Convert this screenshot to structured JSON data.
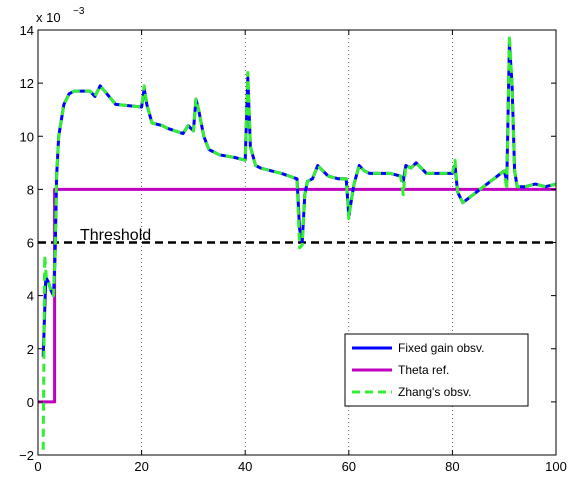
{
  "chart_data": {
    "type": "line",
    "title": "",
    "xlabel": "",
    "ylabel": "",
    "xlim": [
      0,
      100
    ],
    "ylim": [
      -2,
      14
    ],
    "y_scale_label": "x 10",
    "y_scale_exponent": "−3",
    "x_ticks": [
      "0",
      "20",
      "40",
      "60",
      "80",
      "100"
    ],
    "y_ticks": [
      "−2",
      "0",
      "2",
      "4",
      "6",
      "8",
      "10",
      "12",
      "14"
    ],
    "grid": "vertical dotted",
    "legend_position": "bottom-right",
    "annotation": "Threshold",
    "series": [
      {
        "name": "Fixed gain obsv.",
        "color": "#0000ff",
        "style": "solid",
        "x": [
          1,
          1.5,
          2,
          2.5,
          3,
          3.3,
          3.6,
          4,
          5,
          6,
          7,
          8,
          10,
          11,
          12,
          15,
          20,
          20.5,
          21,
          22,
          24,
          25,
          28,
          29,
          30,
          30.5,
          31,
          32,
          33,
          35,
          38,
          40,
          40.5,
          41,
          42,
          43,
          45,
          47,
          50,
          50.5,
          51,
          51.5,
          52,
          53,
          54,
          55,
          56,
          58,
          59.5,
          60,
          60.5,
          61,
          62,
          63,
          64,
          66,
          68,
          70,
          70.5,
          71,
          72,
          73,
          75,
          78,
          80,
          80.5,
          81,
          82,
          84,
          88,
          90,
          90.5,
          91,
          91.5,
          92,
          92.5,
          93,
          94,
          96,
          98,
          100
        ],
        "y": [
          1.7,
          4.7,
          4.5,
          4.2,
          4.0,
          5.5,
          8.5,
          10.0,
          11.2,
          11.6,
          11.7,
          11.7,
          11.7,
          11.5,
          11.9,
          11.2,
          11.1,
          11.8,
          11.2,
          10.5,
          10.4,
          10.3,
          10.1,
          10.4,
          10.2,
          11.4,
          11.0,
          10.0,
          9.5,
          9.3,
          9.2,
          9.1,
          12.2,
          9.6,
          8.9,
          8.8,
          8.7,
          8.6,
          8.4,
          6.5,
          6.0,
          7.8,
          8.3,
          8.4,
          8.9,
          8.7,
          8.5,
          8.4,
          8.4,
          7.0,
          7.6,
          8.2,
          8.9,
          8.7,
          8.6,
          8.6,
          8.6,
          8.5,
          8.3,
          8.9,
          8.8,
          9.0,
          8.6,
          8.6,
          8.6,
          8.9,
          7.9,
          7.5,
          7.8,
          8.4,
          8.7,
          8.3,
          13.5,
          12.0,
          8.7,
          8.1,
          8.1,
          8.1,
          8.2,
          8.1,
          8.2
        ]
      },
      {
        "name": "Theta ref.",
        "color": "#c000c0",
        "style": "solid",
        "x": [
          0,
          3.2,
          3.2,
          100
        ],
        "y": [
          0,
          0,
          8,
          8
        ]
      },
      {
        "name": "Zhang's obsv.",
        "color": "#33ee33",
        "style": "dashed",
        "x": [
          1,
          1.3,
          1.6,
          2,
          2.5,
          3,
          3.3,
          3.6,
          4,
          5,
          6,
          7,
          8,
          10,
          11,
          12,
          15,
          20,
          20.5,
          21,
          22,
          24,
          25,
          28,
          29,
          30,
          30.5,
          31,
          32,
          33,
          35,
          38,
          40,
          40.5,
          41,
          42,
          43,
          45,
          47,
          50,
          50.5,
          51,
          51.5,
          52,
          53,
          54,
          55,
          56,
          58,
          59.5,
          60,
          60.5,
          61,
          62,
          63,
          64,
          66,
          68,
          70,
          70.5,
          71,
          72,
          73,
          75,
          78,
          80,
          80.5,
          81,
          82,
          84,
          88,
          90,
          90.5,
          91,
          91.5,
          92,
          92.5,
          93,
          94,
          96,
          98,
          100
        ],
        "y": [
          -1.8,
          5.5,
          4.7,
          4.5,
          4.2,
          4.0,
          5.5,
          8.5,
          10.0,
          11.2,
          11.6,
          11.7,
          11.7,
          11.7,
          11.5,
          11.9,
          11.2,
          11.1,
          11.9,
          11.2,
          10.5,
          10.4,
          10.3,
          10.1,
          10.4,
          10.2,
          11.4,
          11.0,
          10.0,
          9.5,
          9.3,
          9.2,
          9.1,
          12.4,
          9.6,
          8.9,
          8.8,
          8.7,
          8.6,
          8.4,
          5.8,
          5.9,
          7.8,
          8.3,
          8.4,
          8.9,
          8.7,
          8.5,
          8.4,
          8.4,
          6.9,
          7.6,
          8.2,
          8.9,
          8.7,
          8.6,
          8.6,
          8.6,
          8.5,
          7.8,
          8.9,
          8.8,
          9.0,
          8.6,
          8.6,
          8.6,
          9.1,
          7.9,
          7.5,
          7.8,
          8.4,
          8.7,
          8.0,
          13.8,
          12.0,
          8.7,
          8.1,
          8.1,
          8.1,
          8.2,
          8.1,
          8.2
        ]
      },
      {
        "name": "Threshold",
        "color": "#000000",
        "style": "dashed",
        "x": [
          0,
          100
        ],
        "y": [
          6,
          6
        ]
      }
    ]
  }
}
